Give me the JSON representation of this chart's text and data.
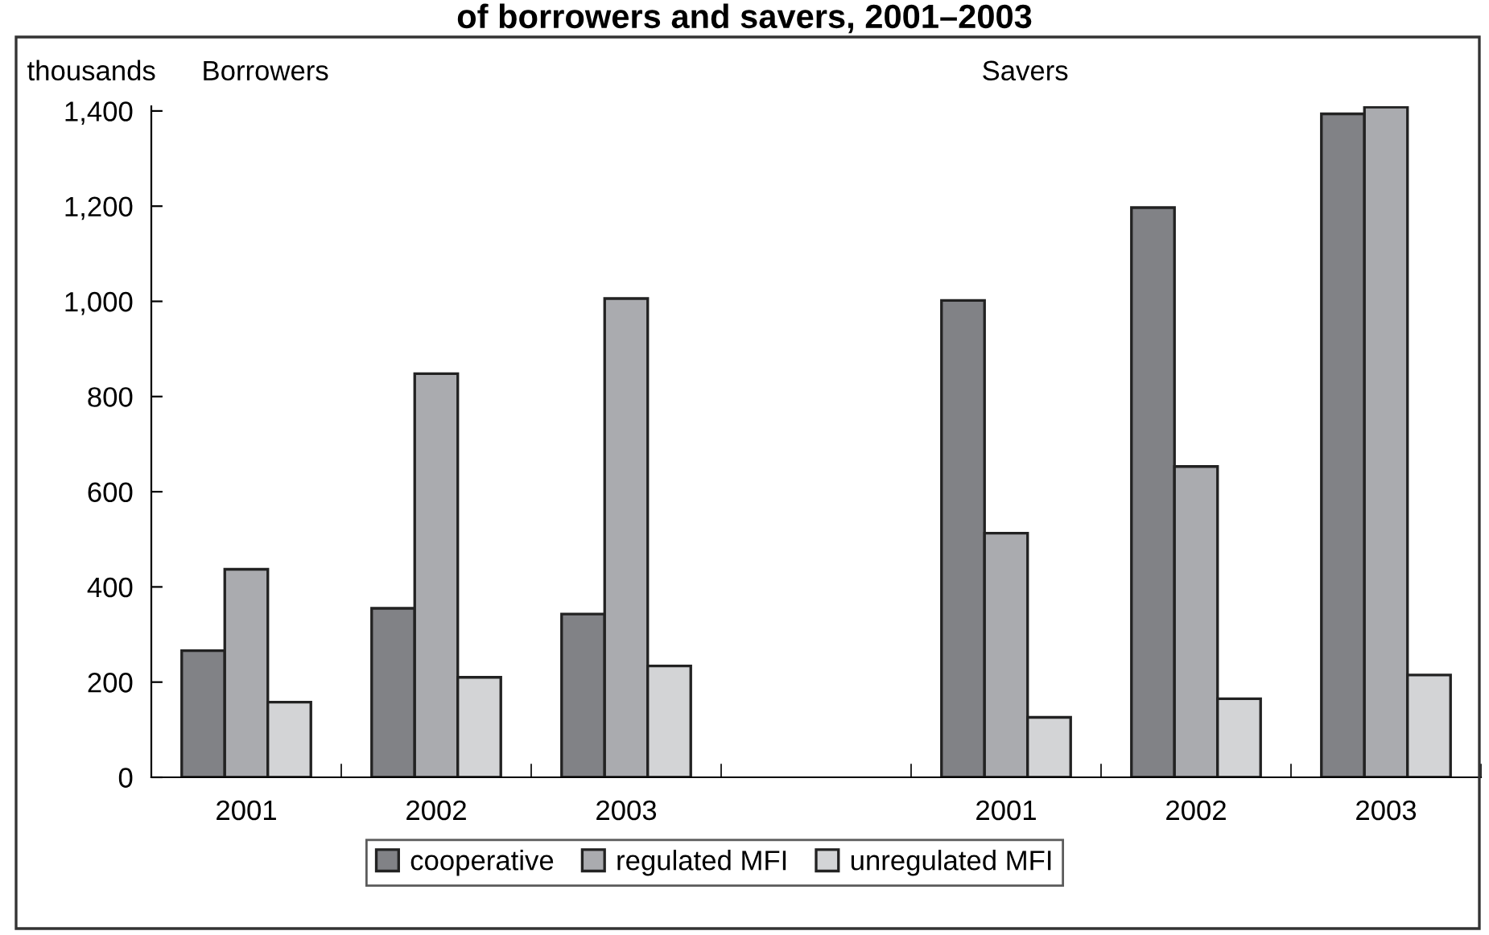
{
  "chart_data": {
    "type": "bar",
    "title": "of borrowers and savers, 2001–2003",
    "ylabel": "thousands",
    "annotations": [
      "Borrowers",
      "Savers"
    ],
    "categories": [
      "2001",
      "2002",
      "2003",
      null,
      "2001",
      "2002",
      "2003"
    ],
    "series": [
      {
        "name": "cooperative",
        "color": "#818286",
        "values": [
          266,
          355,
          343,
          null,
          1002,
          1197,
          1394
        ]
      },
      {
        "name": "regulated MFI",
        "color": "#aaabaf",
        "values": [
          437,
          848,
          1006,
          null,
          513,
          653,
          1408
        ]
      },
      {
        "name": "unregulated MFI",
        "color": "#d3d4d6",
        "values": [
          158,
          210,
          234,
          null,
          126,
          165,
          215
        ]
      }
    ],
    "ylim": [
      0,
      1410
    ],
    "yticks": [
      {
        "value": 0,
        "label": "0"
      },
      {
        "value": 200,
        "label": "200"
      },
      {
        "value": 400,
        "label": "400"
      },
      {
        "value": 600,
        "label": "600"
      },
      {
        "value": 800,
        "label": "800"
      },
      {
        "value": 1000,
        "label": "1,000"
      },
      {
        "value": 1200,
        "label": "1,200"
      },
      {
        "value": 1400,
        "label": "1,400"
      }
    ],
    "grid": false,
    "legend": "bottom"
  }
}
